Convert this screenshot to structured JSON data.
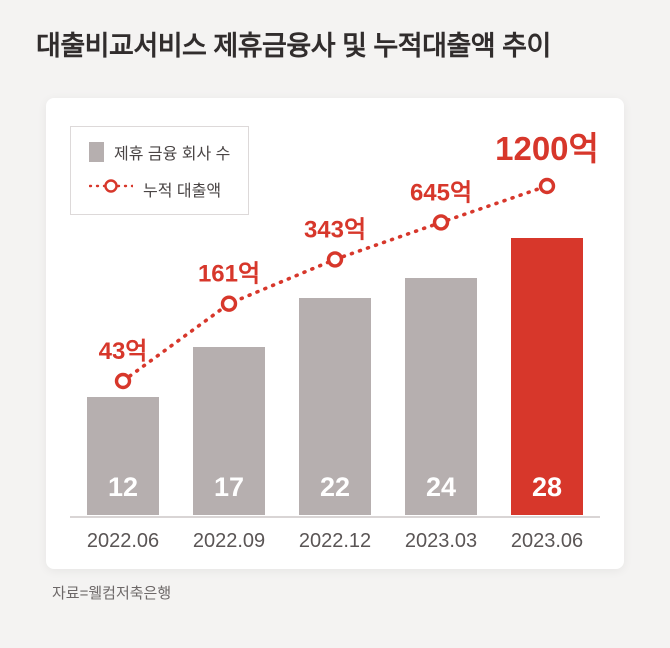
{
  "page": {
    "title": "대출비교서비스 제휴금융사 및 누적대출액 추이",
    "source": "자료=웰컴저축은행"
  },
  "legend": {
    "bar_label": "제휴 금융 회사 수",
    "line_label": "누적 대출액"
  },
  "colors": {
    "bar_gray": "#b6afaf",
    "bar_red": "#d7372b",
    "line_red": "#d7372b",
    "page_bg": "#f4f3f2",
    "card_bg": "#ffffff",
    "axis_line": "#d9d5d5"
  },
  "chart_data": {
    "type": "bar",
    "title": "대출비교서비스 제휴금융사 및 누적대출액 추이",
    "categories": [
      "2022.06",
      "2022.09",
      "2022.12",
      "2023.03",
      "2023.06"
    ],
    "series": [
      {
        "name": "제휴 금융 회사 수",
        "type": "bar",
        "values": [
          12,
          17,
          22,
          24,
          28
        ]
      },
      {
        "name": "누적 대출액",
        "type": "line",
        "values": [
          43,
          161,
          343,
          645,
          1200
        ],
        "labels": [
          "43억",
          "161억",
          "343억",
          "645억",
          "1200억"
        ],
        "unit": "억"
      }
    ],
    "highlight_index": 4,
    "legend_position": "top-left",
    "grid": false
  }
}
